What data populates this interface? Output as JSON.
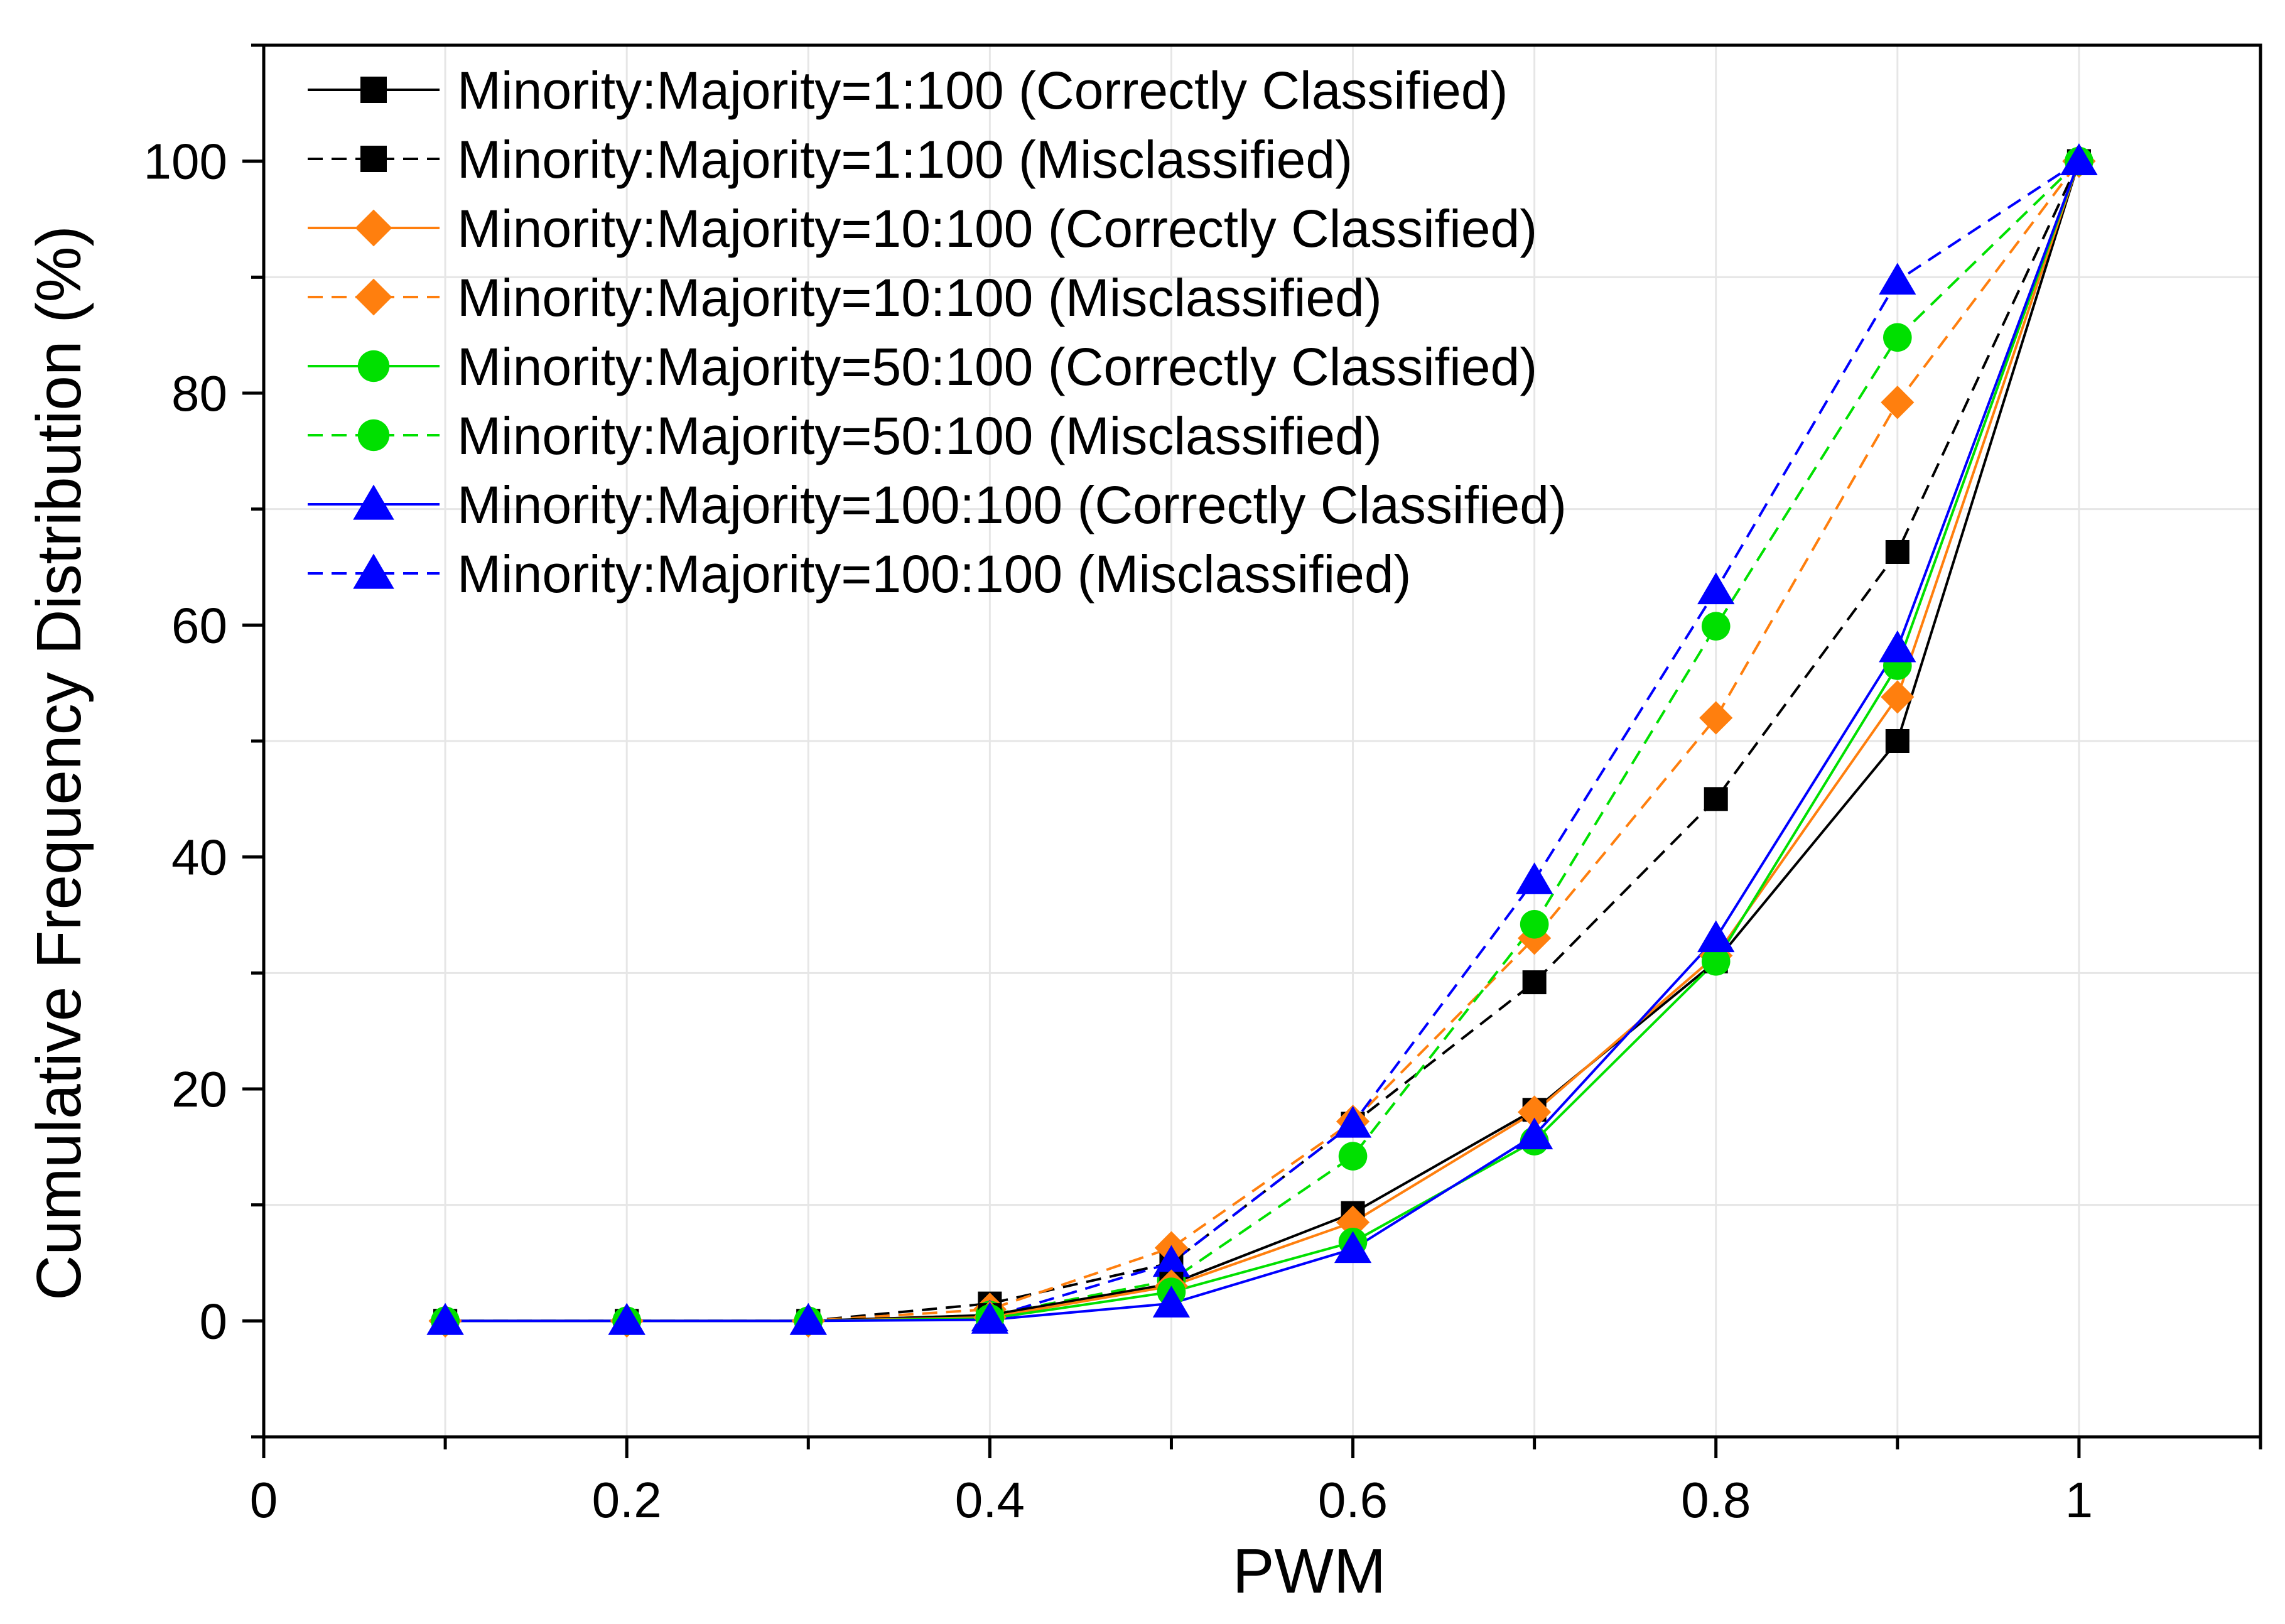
{
  "chart_data": {
    "type": "line",
    "title": "",
    "xlabel": "PWM",
    "ylabel": "Cumulative Frequency Distribution (%)",
    "xlim": [
      0,
      1.1
    ],
    "ylim": [
      -10,
      110
    ],
    "x_ticks": [
      0,
      0.2,
      0.4,
      0.6,
      0.8,
      1
    ],
    "x_tick_labels": [
      "0",
      "0.2",
      "0.4",
      "0.6",
      "0.8",
      "1"
    ],
    "y_ticks": [
      0,
      20,
      40,
      60,
      80,
      100
    ],
    "y_tick_labels": [
      "0",
      "20",
      "40",
      "60",
      "80",
      "100"
    ],
    "grid": true,
    "legend_position": "top-left",
    "x": [
      0.1,
      0.2,
      0.3,
      0.4,
      0.5,
      0.6,
      0.7,
      0.8,
      0.9,
      1.0
    ],
    "series": [
      {
        "name": "Minority:Majority=1:100 (Correctly Classified)",
        "color": "#000000",
        "dash": "solid",
        "marker": "square",
        "values": [
          0,
          0,
          0,
          0.5,
          3.2,
          9.3,
          18.2,
          31.0,
          50.0,
          100
        ]
      },
      {
        "name": "Minority:Majority=1:100 (Misclassified)",
        "color": "#000000",
        "dash": "dashed",
        "marker": "square",
        "values": [
          0,
          0,
          0,
          1.5,
          5.0,
          17.0,
          29.2,
          45.0,
          66.3,
          100
        ]
      },
      {
        "name": "Minority:Majority=10:100 (Correctly Classified)",
        "color": "#ff7f0e",
        "dash": "solid",
        "marker": "diamond",
        "values": [
          0,
          0,
          0,
          0.3,
          3.0,
          8.5,
          18.0,
          31.5,
          53.8,
          100
        ]
      },
      {
        "name": "Minority:Majority=10:100 (Misclassified)",
        "color": "#ff7f0e",
        "dash": "dashed",
        "marker": "diamond",
        "values": [
          0,
          0,
          0,
          1.0,
          6.3,
          17.2,
          33.0,
          52.0,
          79.2,
          100
        ]
      },
      {
        "name": "Minority:Majority=50:100 (Correctly Classified)",
        "color": "#00e000",
        "dash": "solid",
        "marker": "circle",
        "values": [
          0,
          0,
          0,
          0.2,
          2.5,
          6.8,
          15.5,
          31.0,
          56.5,
          100
        ]
      },
      {
        "name": "Minority:Majority=50:100 (Misclassified)",
        "color": "#00e000",
        "dash": "dashed",
        "marker": "circle",
        "values": [
          0,
          0,
          0,
          0.5,
          3.5,
          14.2,
          34.2,
          59.9,
          84.8,
          100
        ]
      },
      {
        "name": "Minority:Majority=100:100 (Correctly Classified)",
        "color": "#0000ff",
        "dash": "solid",
        "marker": "triangle",
        "values": [
          0,
          0,
          0,
          0.1,
          1.5,
          6.2,
          16.0,
          33.0,
          58.0,
          100
        ]
      },
      {
        "name": "Minority:Majority=100:100 (Misclassified)",
        "color": "#0000ff",
        "dash": "dashed",
        "marker": "triangle",
        "values": [
          0,
          0,
          0,
          0.3,
          5.0,
          17.0,
          38.0,
          63.0,
          89.7,
          100
        ]
      }
    ]
  }
}
